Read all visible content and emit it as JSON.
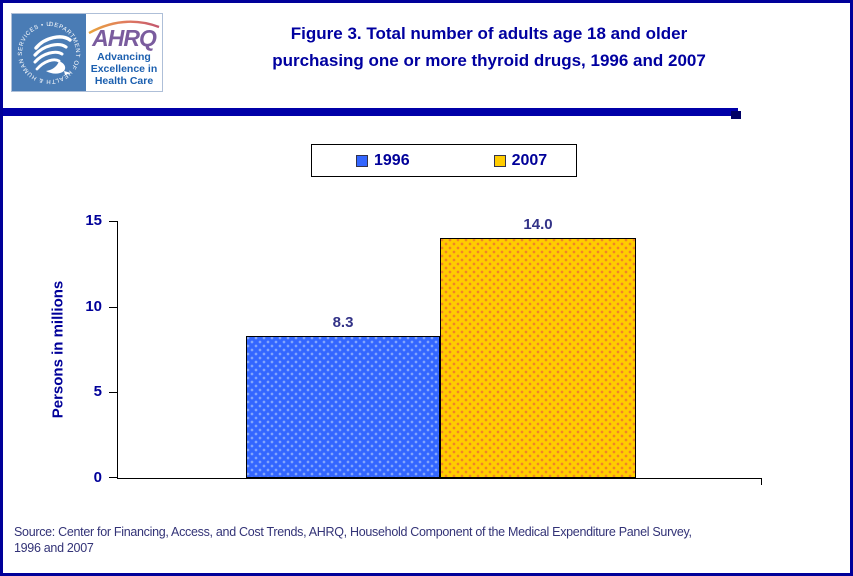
{
  "header": {
    "title_line1": "Figure 3. Total number of adults age 18 and older",
    "title_line2": "purchasing one or more thyroid drugs, 1996 and 2007",
    "title_color": "#0000a0",
    "logo": {
      "seal_text": "DEPARTMENT OF HEALTH & HUMAN SERVICES • USA",
      "acronym": "AHRQ",
      "acronym_color": "#7a5c9e",
      "tagline_line1": "Advancing",
      "tagline_line2": "Excellence in",
      "tagline_line3": "Health Care",
      "tagline_color": "#1b5faf",
      "seal_background": "#4a7cb5"
    }
  },
  "chart_data": {
    "type": "bar",
    "title": "Figure 3. Total number of adults age 18 and older purchasing one or more thyroid drugs, 1996 and 2007",
    "categories": [
      "1996",
      "2007"
    ],
    "series": [
      {
        "name": "1996",
        "value": 8.3,
        "label": "8.3",
        "color": "#3366ff",
        "dot_color": "#84a6fc"
      },
      {
        "name": "2007",
        "value": 14.0,
        "label": "14.0",
        "color": "#ffcc00",
        "dot_color": "#f08228"
      }
    ],
    "xlabel": "",
    "ylabel": "Persons in millions",
    "ylim": [
      0,
      15
    ],
    "yticks": [
      0,
      5,
      10,
      15
    ],
    "grid": false,
    "legend_position": "top-center",
    "accent_navy": "#000099"
  },
  "source": {
    "line1": "Source: Center for Financing, Access, and Cost Trends, AHRQ, Household Component of the Medical Expenditure Panel Survey,",
    "line2": "1996 and 2007"
  }
}
